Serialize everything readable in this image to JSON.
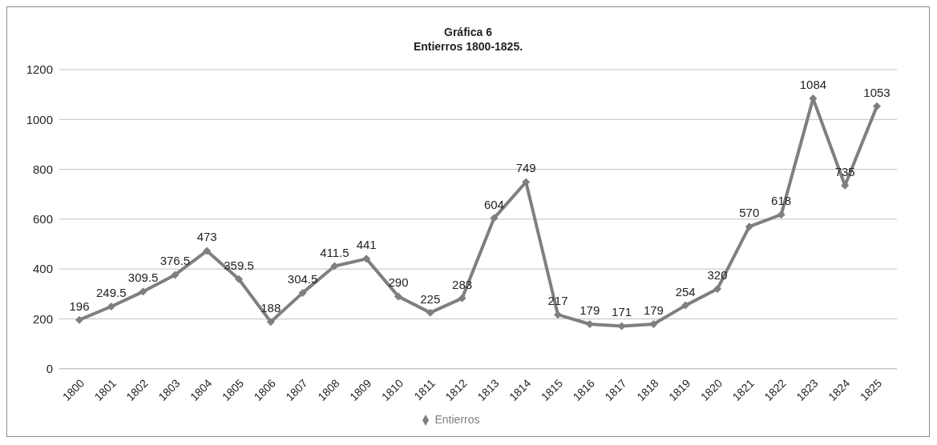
{
  "chart_data": {
    "type": "line",
    "title": "Gráfica 6",
    "subtitle": "Entierros 1800-1825.",
    "categories": [
      "1800",
      "1801",
      "1802",
      "1803",
      "1804",
      "1805",
      "1806",
      "1807",
      "1808",
      "1809",
      "1810",
      "1811",
      "1812",
      "1813",
      "1814",
      "1815",
      "1816",
      "1817",
      "1818",
      "1819",
      "1820",
      "1821",
      "1822",
      "1823",
      "1824",
      "1825"
    ],
    "series": [
      {
        "name": "Entierros",
        "color": "#7f7f7f",
        "values": [
          196,
          249.5,
          309.5,
          376.5,
          473,
          359.5,
          188,
          304.5,
          411.5,
          441,
          290,
          225,
          283,
          604,
          749,
          217,
          179,
          171,
          179,
          254,
          320,
          570,
          618,
          1084,
          735,
          1053
        ]
      }
    ],
    "ylim": [
      0,
      1200
    ],
    "yticks": [
      0,
      200,
      400,
      600,
      800,
      1000,
      1200
    ],
    "grid": "y",
    "legend": "bottom",
    "marker": "diamond",
    "data_labels": true
  }
}
